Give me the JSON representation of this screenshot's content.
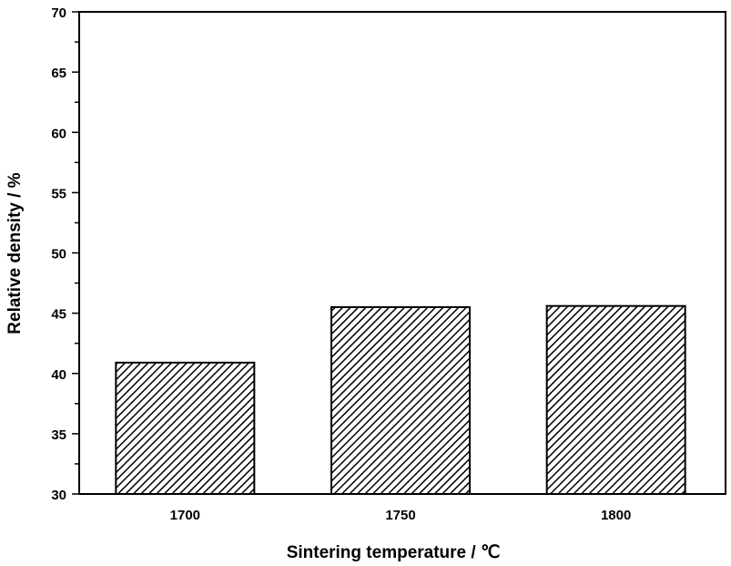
{
  "chart_data": {
    "type": "bar",
    "title": "",
    "xlabel": "Sintering temperature / ℃",
    "ylabel": "Relative density / %",
    "categories": [
      "1700",
      "1750",
      "1800"
    ],
    "values": [
      40.9,
      45.5,
      45.6
    ],
    "ylim": [
      30,
      70
    ],
    "yticks": [
      30,
      35,
      40,
      45,
      50,
      55,
      60,
      65,
      70
    ],
    "grid": false,
    "bar_pattern": "diagonal-hatch",
    "colors": {
      "bar_stroke": "#000000",
      "hatch": "#000000",
      "background": "#ffffff"
    }
  }
}
